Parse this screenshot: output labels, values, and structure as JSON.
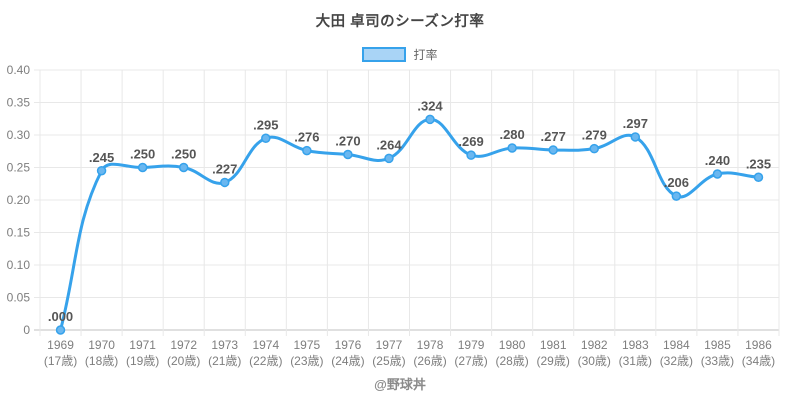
{
  "chart_data": {
    "type": "line",
    "title": "大田 卓司のシーズン打率",
    "series": [
      {
        "name": "打率",
        "values": [
          0.0,
          0.245,
          0.25,
          0.25,
          0.227,
          0.295,
          0.276,
          0.27,
          0.264,
          0.324,
          0.269,
          0.28,
          0.277,
          0.279,
          0.297,
          0.206,
          0.24,
          0.235
        ],
        "point_labels": [
          ".000",
          ".245",
          ".250",
          ".250",
          ".227",
          ".295",
          ".276",
          ".270",
          ".264",
          ".324",
          ".269",
          ".280",
          ".277",
          ".279",
          ".297",
          ".206",
          ".240",
          ".235"
        ]
      }
    ],
    "categories": [
      {
        "year": "1969",
        "age": "(17歳)"
      },
      {
        "year": "1970",
        "age": "(18歳)"
      },
      {
        "year": "1971",
        "age": "(19歳)"
      },
      {
        "year": "1972",
        "age": "(20歳)"
      },
      {
        "year": "1973",
        "age": "(21歳)"
      },
      {
        "year": "1974",
        "age": "(22歳)"
      },
      {
        "year": "1975",
        "age": "(23歳)"
      },
      {
        "year": "1976",
        "age": "(24歳)"
      },
      {
        "year": "1977",
        "age": "(25歳)"
      },
      {
        "year": "1978",
        "age": "(26歳)"
      },
      {
        "year": "1979",
        "age": "(27歳)"
      },
      {
        "year": "1980",
        "age": "(28歳)"
      },
      {
        "year": "1981",
        "age": "(29歳)"
      },
      {
        "year": "1982",
        "age": "(30歳)"
      },
      {
        "year": "1983",
        "age": "(31歳)"
      },
      {
        "year": "1984",
        "age": "(32歳)"
      },
      {
        "year": "1985",
        "age": "(33歳)"
      },
      {
        "year": "1986",
        "age": "(34歳)"
      }
    ],
    "xlabel": "",
    "ylabel": "",
    "ylim": [
      0,
      0.4
    ],
    "ytick_step": 0.05,
    "ytick_labels": [
      "0.40",
      "0.35",
      "0.30",
      "0.25",
      "0.20",
      "0.15",
      "0.10",
      "0.05",
      "0"
    ],
    "grid": true,
    "legend_position": "top",
    "line_tension": 0.4
  },
  "footer": "@野球丼",
  "colors": {
    "line": "#36a2eb",
    "point_fill": "#6ab7f0",
    "legend_fill": "#a9d4f6",
    "grid": "#e8e8e8",
    "zero_line": "#c2c2c2",
    "tick_label": "#7e7e7e",
    "data_label": "#565656",
    "title": "#454545",
    "legend_label": "#666666",
    "footer": "#8a8a8a"
  }
}
